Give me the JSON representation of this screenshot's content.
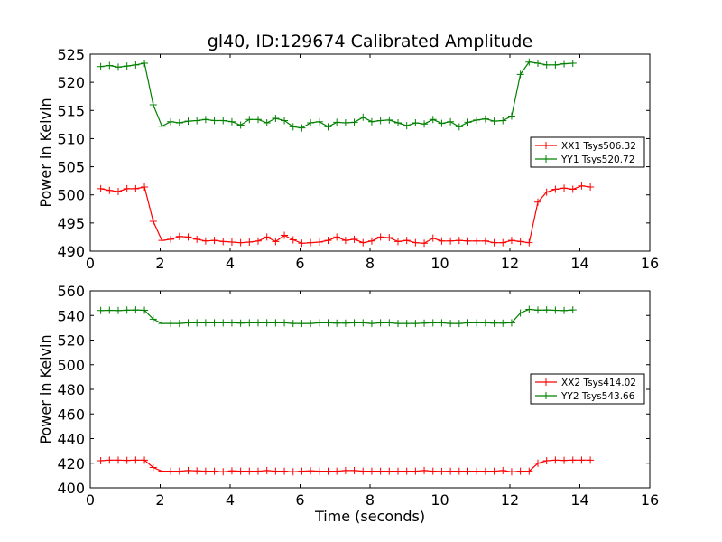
{
  "chart_data": [
    {
      "type": "line",
      "title": "gl40, ID:129674 Calibrated Amplitude",
      "xlabel": "",
      "ylabel": "Power in Kelvin",
      "xlim": [
        0,
        16
      ],
      "ylim": [
        490,
        525
      ],
      "xticks": [
        0,
        2,
        4,
        6,
        8,
        10,
        12,
        14,
        16
      ],
      "yticks": [
        490,
        495,
        500,
        505,
        510,
        515,
        520,
        525
      ],
      "legend_position": "right",
      "x": [
        0.3,
        0.55,
        0.8,
        1.05,
        1.3,
        1.55,
        1.8,
        2.05,
        2.3,
        2.55,
        2.8,
        3.05,
        3.3,
        3.55,
        3.8,
        4.05,
        4.3,
        4.55,
        4.8,
        5.05,
        5.3,
        5.55,
        5.8,
        6.05,
        6.3,
        6.55,
        6.8,
        7.05,
        7.3,
        7.55,
        7.8,
        8.05,
        8.3,
        8.55,
        8.8,
        9.05,
        9.3,
        9.55,
        9.8,
        10.05,
        10.3,
        10.55,
        10.8,
        11.05,
        11.3,
        11.55,
        11.8,
        12.05,
        12.3,
        12.55,
        12.8,
        13.05,
        13.3,
        13.55,
        13.8,
        14.05,
        14.3,
        14.55,
        14.8
      ],
      "series": [
        {
          "name": "XX1 Tsys506.32",
          "color": "#ff0000",
          "values": [
            501.1,
            500.8,
            500.6,
            501.1,
            501.1,
            501.4,
            495.3,
            491.9,
            492.1,
            492.6,
            492.5,
            492.1,
            491.8,
            491.9,
            491.7,
            491.6,
            491.5,
            491.6,
            491.8,
            492.5,
            491.7,
            492.8,
            492.0,
            491.4,
            491.5,
            491.6,
            491.9,
            492.5,
            491.9,
            492.1,
            491.5,
            491.8,
            492.5,
            492.4,
            491.7,
            491.9,
            491.5,
            491.4,
            492.3,
            491.8,
            491.8,
            491.9,
            491.8,
            491.8,
            491.8,
            491.5,
            491.5,
            491.9,
            491.7,
            491.5,
            498.7,
            500.5,
            501.0,
            501.2,
            501.0,
            501.6,
            501.4,
            null,
            null
          ]
        },
        {
          "name": "YY1 Tsys520.72",
          "color": "#008000",
          "values": [
            522.8,
            523.0,
            522.7,
            522.9,
            523.1,
            523.4,
            516.0,
            512.2,
            513.0,
            512.8,
            513.1,
            513.2,
            513.4,
            513.2,
            513.2,
            513.0,
            512.4,
            513.4,
            513.4,
            512.8,
            513.6,
            513.2,
            512.1,
            511.9,
            512.8,
            513.0,
            512.1,
            512.9,
            512.8,
            512.9,
            513.8,
            513.0,
            513.2,
            513.3,
            512.8,
            512.3,
            512.8,
            512.6,
            513.4,
            512.7,
            513.0,
            512.1,
            512.9,
            513.3,
            513.5,
            513.1,
            513.2,
            514.0,
            521.4,
            523.6,
            523.4,
            523.1,
            523.1,
            523.3,
            523.4,
            null,
            null,
            null,
            null
          ]
        }
      ]
    },
    {
      "type": "line",
      "title": "",
      "xlabel": "Time (seconds)",
      "ylabel": "Power in Kelvin",
      "xlim": [
        0,
        16
      ],
      "ylim": [
        400,
        560
      ],
      "xticks": [
        0,
        2,
        4,
        6,
        8,
        10,
        12,
        14,
        16
      ],
      "yticks": [
        400,
        420,
        440,
        460,
        480,
        500,
        520,
        540,
        560
      ],
      "legend_position": "right",
      "x": [
        0.3,
        0.55,
        0.8,
        1.05,
        1.3,
        1.55,
        1.8,
        2.05,
        2.3,
        2.55,
        2.8,
        3.05,
        3.3,
        3.55,
        3.8,
        4.05,
        4.3,
        4.55,
        4.8,
        5.05,
        5.3,
        5.55,
        5.8,
        6.05,
        6.3,
        6.55,
        6.8,
        7.05,
        7.3,
        7.55,
        7.8,
        8.05,
        8.3,
        8.55,
        8.8,
        9.05,
        9.3,
        9.55,
        9.8,
        10.05,
        10.3,
        10.55,
        10.8,
        11.05,
        11.3,
        11.55,
        11.8,
        12.05,
        12.3,
        12.55,
        12.8,
        13.05,
        13.3,
        13.55,
        13.8,
        14.05,
        14.3,
        14.55,
        14.8
      ],
      "series": [
        {
          "name": "XX2 Tsys414.02",
          "color": "#ff0000",
          "values": [
            422.0,
            422.5,
            422.5,
            422.3,
            422.5,
            422.5,
            416.5,
            413.5,
            413.5,
            413.5,
            414.0,
            413.8,
            413.5,
            413.5,
            413.0,
            413.8,
            413.5,
            413.5,
            413.5,
            414.0,
            413.5,
            413.5,
            413.0,
            413.5,
            413.8,
            413.5,
            413.5,
            413.5,
            414.0,
            414.0,
            413.5,
            413.5,
            413.5,
            413.5,
            413.5,
            413.5,
            413.5,
            414.0,
            413.5,
            413.3,
            413.5,
            413.5,
            413.5,
            413.5,
            413.5,
            413.5,
            414.0,
            413.0,
            413.5,
            413.5,
            420.0,
            422.0,
            422.5,
            422.3,
            422.5,
            422.5,
            422.5,
            null,
            null
          ]
        },
        {
          "name": "YY2 Tsys543.66",
          "color": "#008000",
          "values": [
            544.0,
            544.2,
            544.0,
            544.3,
            544.5,
            544.2,
            537.0,
            533.5,
            533.5,
            533.5,
            534.0,
            534.0,
            534.0,
            534.0,
            534.0,
            534.0,
            533.8,
            534.0,
            534.0,
            534.0,
            534.0,
            534.0,
            533.5,
            533.5,
            533.5,
            534.0,
            534.0,
            533.8,
            533.8,
            534.0,
            534.0,
            533.5,
            534.0,
            534.0,
            533.5,
            533.5,
            533.5,
            533.8,
            534.0,
            534.0,
            533.5,
            533.5,
            534.0,
            534.0,
            534.0,
            533.8,
            533.8,
            534.0,
            542.0,
            545.0,
            544.3,
            544.5,
            544.2,
            544.0,
            544.5,
            null,
            null,
            null,
            null
          ]
        }
      ]
    }
  ]
}
